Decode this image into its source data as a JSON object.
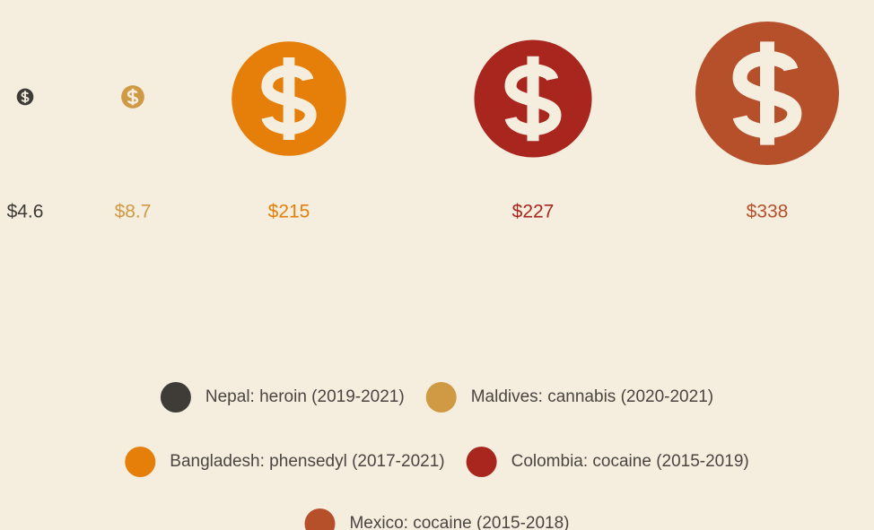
{
  "chart_data": {
    "type": "bubble",
    "series": [
      {
        "name": "Nepal: heroin (2019-2021)",
        "color": "#3f3b37",
        "values": [
          4.6
        ],
        "value_labels": [
          "$4.6"
        ]
      },
      {
        "name": "Maldives: cannabis (2020-2021)",
        "color": "#d09a45",
        "values": [
          8.7
        ],
        "value_labels": [
          "$8.7"
        ]
      },
      {
        "name": "Bangladesh: phensedyl (2017-2021)",
        "color": "#e57f0a",
        "values": [
          215
        ],
        "value_labels": [
          "$215"
        ]
      },
      {
        "name": "Colombia: cocaine (2015-2019)",
        "color": "#a8261e",
        "values": [
          227
        ],
        "value_labels": [
          "$227"
        ]
      },
      {
        "name": "Mexico: cocaine (2015-2018)",
        "color": "#b5502a",
        "values": [
          338
        ],
        "value_labels": [
          "$338"
        ]
      }
    ]
  }
}
